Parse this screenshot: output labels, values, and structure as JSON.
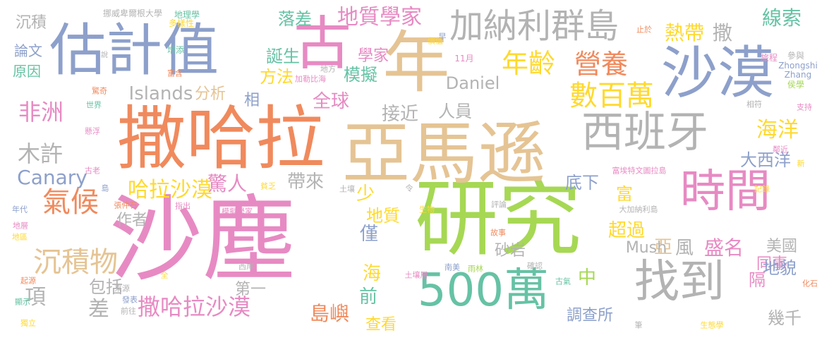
{
  "palette": {
    "orange": "#f08a5d",
    "blue": "#8da0cb",
    "green": "#66c2a5",
    "pink": "#e78ac3",
    "lime": "#a6d854",
    "yellow": "#ffd92f",
    "tan": "#e5c494",
    "gray": "#b3b3b3"
  },
  "words": [
    {
      "text": "沙塵",
      "color": "pink"
    },
    {
      "text": "研究",
      "color": "lime"
    },
    {
      "text": "撒哈拉",
      "color": "orange"
    },
    {
      "text": "亞馬遜",
      "color": "tan"
    },
    {
      "text": "年",
      "color": "tan"
    },
    {
      "text": "古",
      "color": "pink"
    },
    {
      "text": "估計值",
      "color": "blue"
    },
    {
      "text": "沙漠",
      "color": "blue"
    },
    {
      "text": "時間",
      "color": "pink"
    },
    {
      "text": "500萬",
      "color": "green"
    },
    {
      "text": "找到",
      "color": "gray"
    },
    {
      "text": "西班牙",
      "color": "gray"
    },
    {
      "text": "加納利群島",
      "color": "gray"
    },
    {
      "text": "數百萬",
      "color": "yellow"
    },
    {
      "text": "年齡",
      "color": "yellow"
    },
    {
      "text": "營養",
      "color": "orange"
    },
    {
      "text": "氣候",
      "color": "orange"
    },
    {
      "text": "沉積物",
      "color": "tan"
    },
    {
      "text": "撒哈拉沙漠",
      "color": "pink"
    },
    {
      "text": "哈拉沙漠",
      "color": "yellow"
    },
    {
      "text": "非洲",
      "color": "pink"
    },
    {
      "text": "木許",
      "color": "gray"
    },
    {
      "text": "Canary",
      "color": "blue"
    },
    {
      "text": "海洋",
      "color": "yellow"
    },
    {
      "text": "地質學家",
      "color": "pink"
    },
    {
      "text": "熱帶",
      "color": "yellow"
    },
    {
      "text": "撒",
      "color": "gray"
    },
    {
      "text": "線索",
      "color": "green"
    },
    {
      "text": "落差",
      "color": "green"
    },
    {
      "text": "全球",
      "color": "pink"
    },
    {
      "text": "模擬",
      "color": "green"
    },
    {
      "text": "學家",
      "color": "pink"
    },
    {
      "text": "Islands",
      "color": "gray"
    },
    {
      "text": "分析",
      "color": "tan"
    },
    {
      "text": "方法",
      "color": "yellow"
    },
    {
      "text": "誕生",
      "color": "green"
    },
    {
      "text": "Daniel",
      "color": "gray"
    },
    {
      "text": "接近",
      "color": "gray"
    },
    {
      "text": "人員",
      "color": "gray"
    },
    {
      "text": "驚人",
      "color": "pink"
    },
    {
      "text": "帶來",
      "color": "gray"
    },
    {
      "text": "島嶼",
      "color": "orange"
    },
    {
      "text": "查看",
      "color": "yellow"
    },
    {
      "text": "前",
      "color": "green"
    },
    {
      "text": "海",
      "color": "yellow"
    },
    {
      "text": "僅",
      "color": "blue"
    },
    {
      "text": "少",
      "color": "yellow"
    },
    {
      "text": "地質",
      "color": "yellow"
    },
    {
      "text": "中",
      "color": "lime"
    },
    {
      "text": "底下",
      "color": "blue"
    },
    {
      "text": "超過",
      "color": "yellow"
    },
    {
      "text": "富",
      "color": "yellow"
    },
    {
      "text": "亞",
      "color": "tan"
    },
    {
      "text": "風",
      "color": "gray"
    },
    {
      "text": "盛名",
      "color": "pink"
    },
    {
      "text": "隔",
      "color": "pink"
    },
    {
      "text": "同事",
      "color": "pink"
    },
    {
      "text": "美國",
      "color": "gray"
    },
    {
      "text": "地貌",
      "color": "blue"
    },
    {
      "text": "大西洋",
      "color": "blue"
    },
    {
      "text": "幾千",
      "color": "gray"
    },
    {
      "text": "調查所",
      "color": "blue"
    },
    {
      "text": "砂岩",
      "color": "gray"
    },
    {
      "text": "Mush",
      "color": "gray"
    },
    {
      "text": "相",
      "color": "blue"
    },
    {
      "text": "作者",
      "color": "gray"
    },
    {
      "text": "包括",
      "color": "gray"
    },
    {
      "text": "項",
      "color": "gray"
    },
    {
      "text": "差",
      "color": "gray"
    },
    {
      "text": "第一",
      "color": "gray"
    },
    {
      "text": "沉積",
      "color": "gray"
    },
    {
      "text": "論文",
      "color": "blue"
    },
    {
      "text": "原因",
      "color": "green"
    },
    {
      "text": "說",
      "color": "gray"
    },
    {
      "text": "挪威卑爾根大學",
      "color": "gray"
    },
    {
      "text": "地理學",
      "color": "green"
    },
    {
      "text": "多樣性",
      "color": "yellow"
    },
    {
      "text": "增添",
      "color": "green"
    },
    {
      "text": "富含",
      "color": "orange"
    },
    {
      "text": "價值",
      "color": "yellow"
    },
    {
      "text": "早",
      "color": "blue"
    },
    {
      "text": "止於",
      "color": "orange"
    },
    {
      "text": "Zhongshi",
      "color": "blue"
    },
    {
      "text": "參與",
      "color": "gray"
    },
    {
      "text": "Zhang",
      "color": "blue"
    },
    {
      "text": "旅程",
      "color": "pink"
    },
    {
      "text": "侯學",
      "color": "lime"
    },
    {
      "text": "地方",
      "color": "gray"
    },
    {
      "text": "11月",
      "color": "pink"
    },
    {
      "text": "驚奇",
      "color": "orange"
    },
    {
      "text": "世界",
      "color": "green"
    },
    {
      "text": "懸浮",
      "color": "pink"
    },
    {
      "text": "加勒比海",
      "color": "pink"
    },
    {
      "text": "相符",
      "color": "gray"
    },
    {
      "text": "支持",
      "color": "pink"
    },
    {
      "text": "鄰近",
      "color": "pink"
    },
    {
      "text": "新",
      "color": "yellow"
    },
    {
      "text": "記錄",
      "color": "yellow"
    },
    {
      "text": "富埃特文圖拉島",
      "color": "pink"
    },
    {
      "text": "古老",
      "color": "pink"
    },
    {
      "text": "島",
      "color": "blue"
    },
    {
      "text": "令",
      "color": "gray"
    },
    {
      "text": "土壤",
      "color": "gray"
    },
    {
      "text": "貧乏",
      "color": "yellow"
    },
    {
      "text": "張仲石",
      "color": "orange"
    },
    {
      "text": "指出",
      "color": "pink"
    },
    {
      "text": "模擬學家",
      "color": "pink"
    },
    {
      "text": "年代",
      "color": "blue"
    },
    {
      "text": "地層",
      "color": "pink"
    },
    {
      "text": "地區",
      "color": "yellow"
    },
    {
      "text": "生物",
      "color": "yellow"
    },
    {
      "text": "評論",
      "color": "gray"
    },
    {
      "text": "大加納利島",
      "color": "gray"
    },
    {
      "text": "故事",
      "color": "orange"
    },
    {
      "text": "土壤層",
      "color": "pink"
    },
    {
      "text": "南美",
      "color": "blue"
    },
    {
      "text": "雨林",
      "color": "lime"
    },
    {
      "text": "確認",
      "color": "gray"
    },
    {
      "text": "古氣",
      "color": "green"
    },
    {
      "text": "西岸",
      "color": "gray"
    },
    {
      "text": "全",
      "color": "yellow"
    },
    {
      "text": "起源",
      "color": "orange"
    },
    {
      "text": "來源",
      "color": "gray"
    },
    {
      "text": "顯示",
      "color": "green"
    },
    {
      "text": "發表",
      "color": "blue"
    },
    {
      "text": "前往",
      "color": "gray"
    },
    {
      "text": "獨立",
      "color": "yellow"
    },
    {
      "text": "筆",
      "color": "gray"
    },
    {
      "text": "生態學",
      "color": "yellow"
    },
    {
      "text": "化石",
      "color": "orange"
    }
  ]
}
